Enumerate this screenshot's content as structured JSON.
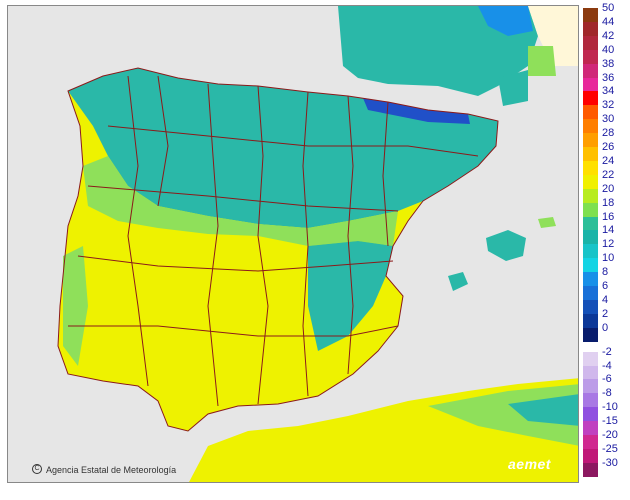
{
  "map": {
    "credit_text": "Agencia Estatal de Meteorología",
    "copyright_symbol": "C",
    "brand": "aemet",
    "colors": {
      "sea": "#e6e6e6",
      "land_outside": "#e6e6e6",
      "border": "#8b1a1a",
      "land_warm": "#eef200",
      "land_mid": "#8fe05a",
      "land_cool": "#2ab8a8",
      "land_cold": "#18c8d8",
      "high_mountain": "#2050c8"
    }
  },
  "legend": {
    "positive": [
      {
        "label": "50",
        "color": "#8b3a0f"
      },
      {
        "label": "44",
        "color": "#a0282a"
      },
      {
        "label": "42",
        "color": "#b0283c"
      },
      {
        "label": "40",
        "color": "#c02850"
      },
      {
        "label": "38",
        "color": "#d02878"
      },
      {
        "label": "36",
        "color": "#e8289a"
      },
      {
        "label": "34",
        "color": "#ff0000"
      },
      {
        "label": "32",
        "color": "#ff5a00"
      },
      {
        "label": "30",
        "color": "#ff7e00"
      },
      {
        "label": "28",
        "color": "#ff9e00"
      },
      {
        "label": "26",
        "color": "#ffc000"
      },
      {
        "label": "24",
        "color": "#ffe000"
      },
      {
        "label": "22",
        "color": "#f0f000"
      },
      {
        "label": "20",
        "color": "#b8ec20"
      },
      {
        "label": "18",
        "color": "#7ee050"
      },
      {
        "label": "16",
        "color": "#2cbf98"
      },
      {
        "label": "14",
        "color": "#1ab4a8"
      },
      {
        "label": "12",
        "color": "#18c4c8"
      },
      {
        "label": "10",
        "color": "#14d4e4"
      },
      {
        "label": "8",
        "color": "#1890e8"
      },
      {
        "label": "6",
        "color": "#1870d8"
      },
      {
        "label": "4",
        "color": "#1450b8"
      },
      {
        "label": "2",
        "color": "#0c3898"
      },
      {
        "label": "0",
        "color": "#081c6c"
      }
    ],
    "negative": [
      {
        "label": "-2",
        "color": "#e0d0f0"
      },
      {
        "label": "-4",
        "color": "#d0b8ec"
      },
      {
        "label": "-6",
        "color": "#bc9ce8"
      },
      {
        "label": "-8",
        "color": "#a878e4"
      },
      {
        "label": "-10",
        "color": "#9050e0"
      },
      {
        "label": "-15",
        "color": "#c040c0"
      },
      {
        "label": "-20",
        "color": "#d02890"
      },
      {
        "label": "-25",
        "color": "#c01878"
      },
      {
        "label": "-30",
        "color": "#8c1860"
      }
    ]
  }
}
